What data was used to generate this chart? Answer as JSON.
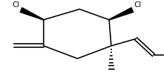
{
  "bg_color": "#ffffff",
  "line_color": "#000000",
  "text_color": "#000000",
  "figsize": [
    2.33,
    1.12
  ],
  "dpi": 100,
  "lw": 1.2,
  "font_size": 7.5
}
